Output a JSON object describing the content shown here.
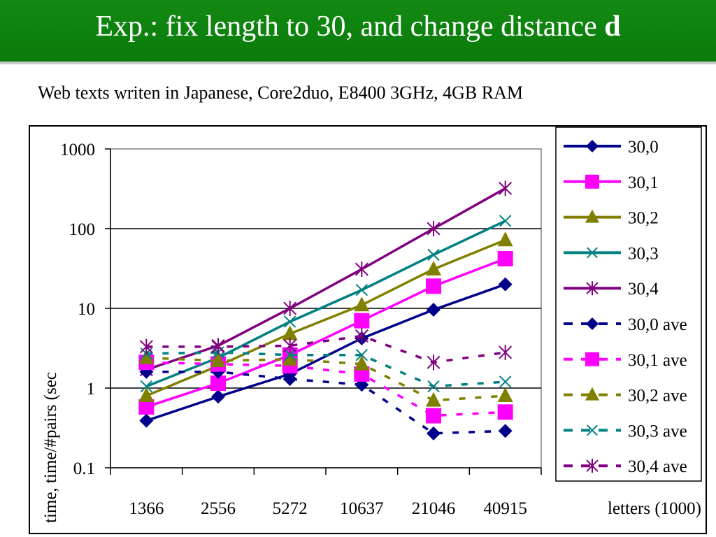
{
  "slide": {
    "title_main": "Exp.: fix length to 30, and change distance ",
    "title_bold": "d",
    "subtitle": "Web texts writen in Japanese, Core2duo, E8400 3GHz, 4GB RAM"
  },
  "chart_data": {
    "type": "line",
    "xlabel": "letters (1000)",
    "ylabel": "time, time/#pairs (sec",
    "yscale": "log",
    "ylim": [
      0.1,
      1000
    ],
    "y_ticks": [
      "0.1",
      "1",
      "10",
      "100",
      "1000"
    ],
    "categories": [
      "1366",
      "2556",
      "5272",
      "10637",
      "21046",
      "40915"
    ],
    "legend_position": "right",
    "grid": "horizontal",
    "series": [
      {
        "name": "30,0",
        "color": "#00008b",
        "marker": "diamond",
        "style": "solid",
        "values": [
          0.39,
          0.78,
          1.5,
          4.2,
          9.6,
          20
        ]
      },
      {
        "name": "30,1",
        "color": "#ff00ff",
        "marker": "square",
        "style": "solid",
        "values": [
          0.58,
          1.15,
          2.6,
          7.0,
          19,
          42
        ]
      },
      {
        "name": "30,2",
        "color": "#808000",
        "marker": "triangle",
        "style": "solid",
        "values": [
          0.8,
          1.9,
          4.8,
          11,
          31,
          72
        ]
      },
      {
        "name": "30,3",
        "color": "#008080",
        "marker": "x",
        "style": "solid",
        "values": [
          1.05,
          2.4,
          6.8,
          17,
          47,
          125
        ]
      },
      {
        "name": "30,4",
        "color": "#800080",
        "marker": "star",
        "style": "solid",
        "values": [
          1.7,
          3.4,
          10,
          31,
          100,
          320
        ]
      },
      {
        "name": "30,0 ave",
        "color": "#00008b",
        "marker": "diamond",
        "style": "dashed",
        "values": [
          1.6,
          1.6,
          1.3,
          1.1,
          0.27,
          0.29
        ]
      },
      {
        "name": "30,1 ave",
        "color": "#ff00ff",
        "marker": "square",
        "style": "dashed",
        "values": [
          2.1,
          2.0,
          1.9,
          1.5,
          0.45,
          0.5
        ]
      },
      {
        "name": "30,2 ave",
        "color": "#808000",
        "marker": "triangle",
        "style": "dashed",
        "values": [
          2.4,
          2.2,
          2.3,
          2.0,
          0.7,
          0.8
        ]
      },
      {
        "name": "30,3 ave",
        "color": "#008080",
        "marker": "x",
        "style": "dashed",
        "values": [
          2.7,
          2.8,
          2.6,
          2.6,
          1.05,
          1.2
        ]
      },
      {
        "name": "30,4 ave",
        "color": "#800080",
        "marker": "star",
        "style": "dashed",
        "values": [
          3.3,
          3.3,
          3.4,
          4.5,
          2.1,
          2.8
        ]
      }
    ]
  }
}
